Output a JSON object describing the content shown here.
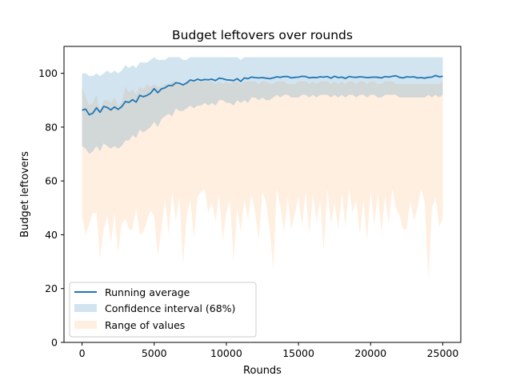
{
  "chart_data": {
    "type": "line",
    "title": "Budget leftovers over rounds",
    "xlabel": "Rounds",
    "ylabel": "Budget leftovers",
    "xlim": [
      -1250,
      26250
    ],
    "ylim": [
      0,
      110
    ],
    "xticks": [
      0,
      5000,
      10000,
      15000,
      20000,
      25000
    ],
    "yticks": [
      0,
      20,
      40,
      60,
      80,
      100
    ],
    "grid": false,
    "legend_position": "lower-left",
    "colors": {
      "line": "#1f77b4",
      "ci_fill": "#1f77b4",
      "range_fill": "#ffe4cc"
    },
    "legend": [
      {
        "label": "Running average",
        "kind": "line"
      },
      {
        "label": "Confidence interval (68%)",
        "kind": "ci"
      },
      {
        "label": "Range of values",
        "kind": "range"
      }
    ],
    "x": [
      0,
      250,
      500,
      750,
      1000,
      1250,
      1500,
      1750,
      2000,
      2250,
      2500,
      2750,
      3000,
      3250,
      3500,
      3750,
      4000,
      4250,
      4500,
      4750,
      5000,
      5250,
      5500,
      5750,
      6000,
      6250,
      6500,
      6750,
      7000,
      7250,
      7500,
      7750,
      8000,
      8250,
      8500,
      8750,
      9000,
      9250,
      9500,
      9750,
      10000,
      10250,
      10500,
      10750,
      11000,
      11250,
      11500,
      11750,
      12000,
      12250,
      12500,
      12750,
      13000,
      13250,
      13500,
      13750,
      14000,
      14250,
      14500,
      14750,
      15000,
      15250,
      15500,
      15750,
      16000,
      16250,
      16500,
      16750,
      17000,
      17250,
      17500,
      17750,
      18000,
      18250,
      18500,
      18750,
      19000,
      19250,
      19500,
      19750,
      20000,
      20250,
      20500,
      20750,
      21000,
      21250,
      21500,
      21750,
      22000,
      22250,
      22500,
      22750,
      23000,
      23250,
      23500,
      23750,
      24000,
      24250,
      24500,
      24750,
      25000
    ],
    "series": [
      {
        "name": "Running average",
        "values": [
          86.3,
          86.7,
          84.6,
          85.2,
          87.2,
          85.5,
          87.7,
          87.3,
          86.4,
          87.5,
          86.6,
          87.6,
          89.5,
          89.2,
          90.2,
          89.3,
          91.8,
          91.3,
          91.8,
          92.6,
          94.3,
          92.8,
          94.2,
          94.6,
          95.5,
          95.4,
          96.5,
          96.3,
          95.7,
          96.4,
          97.5,
          97.2,
          97.8,
          97.4,
          97.7,
          97.6,
          97.8,
          97.3,
          98.2,
          98.0,
          97.6,
          97.5,
          97.3,
          98.0,
          97.0,
          98.3,
          98.0,
          98.6,
          98.4,
          98.3,
          98.4,
          98.2,
          98.0,
          98.3,
          98.7,
          98.5,
          98.8,
          98.8,
          98.3,
          98.5,
          98.6,
          98.9,
          98.8,
          98.3,
          98.5,
          98.4,
          98.7,
          98.6,
          98.8,
          98.2,
          98.9,
          98.4,
          98.6,
          98.1,
          98.8,
          98.6,
          98.5,
          98.7,
          98.6,
          98.4,
          98.5,
          98.6,
          98.5,
          98.3,
          98.8,
          98.6,
          98.9,
          99.1,
          98.5,
          98.3,
          98.7,
          98.6,
          98.7,
          98.3,
          98.4,
          98.2,
          98.5,
          98.6,
          99.2,
          98.7,
          98.9
        ]
      }
    ],
    "ci_lower": [
      73,
      72,
      70,
      71,
      73,
      71,
      74,
      73,
      72,
      73,
      72,
      73,
      75,
      75,
      77,
      76,
      79,
      78,
      79,
      80,
      82,
      80,
      83,
      84,
      85,
      84,
      87,
      86,
      86,
      87,
      88,
      87,
      88,
      88,
      89,
      88,
      89,
      88,
      90,
      90,
      89,
      89,
      88,
      90,
      89,
      90,
      89,
      91,
      91,
      90,
      91,
      90,
      90,
      91,
      92,
      91,
      92,
      92,
      91,
      91,
      91,
      92,
      92,
      91,
      92,
      91,
      92,
      92,
      92,
      91,
      92,
      91,
      92,
      91,
      92,
      92,
      91,
      92,
      92,
      91,
      92,
      92,
      91,
      91,
      92,
      92,
      92,
      92,
      91,
      91,
      91,
      91,
      91,
      91,
      91,
      91,
      92,
      91,
      92,
      91,
      92
    ],
    "ci_upper": [
      100,
      100,
      99,
      99,
      100,
      99,
      100,
      101,
      100,
      101,
      100,
      101,
      103,
      102,
      103,
      102,
      104,
      104,
      104,
      105,
      106,
      105,
      105,
      105,
      106,
      106,
      106,
      106,
      105,
      105,
      106,
      106,
      106,
      106,
      106,
      106,
      106,
      106,
      106,
      106,
      106,
      106,
      106,
      106,
      105,
      106,
      106,
      106,
      106,
      106,
      106,
      106,
      106,
      106,
      106,
      106,
      106,
      106,
      106,
      106,
      106,
      106,
      106,
      106,
      106,
      106,
      106,
      106,
      106,
      106,
      106,
      106,
      106,
      106,
      106,
      106,
      106,
      106,
      106,
      106,
      106,
      106,
      106,
      106,
      106,
      106,
      106,
      106,
      106,
      106,
      106,
      106,
      106,
      106,
      106,
      106,
      106,
      106,
      106,
      106,
      106
    ],
    "range_lower": [
      47,
      40,
      44,
      48,
      48,
      31,
      42,
      47,
      37,
      48,
      33,
      44,
      46,
      42,
      42,
      50,
      40,
      41,
      45,
      49,
      47,
      32,
      42,
      53,
      40,
      56,
      45,
      54,
      29,
      47,
      53,
      39,
      54,
      56,
      57,
      48,
      52,
      45,
      55,
      38,
      48,
      53,
      30,
      50,
      41,
      53,
      46,
      55,
      48,
      38,
      56,
      52,
      42,
      27,
      57,
      50,
      41,
      54,
      42,
      48,
      54,
      43,
      56,
      40,
      55,
      45,
      53,
      34,
      57,
      44,
      52,
      42,
      55,
      43,
      57,
      48,
      53,
      40,
      53,
      38,
      56,
      44,
      55,
      41,
      54,
      44,
      57,
      50,
      47,
      42,
      42,
      53,
      45,
      50,
      57,
      52,
      23,
      50,
      54,
      43,
      46
    ],
    "range_upper": [
      95,
      91,
      88,
      89,
      92,
      86,
      90,
      90,
      89,
      91,
      88,
      89,
      95,
      93,
      94,
      92,
      95,
      94,
      96,
      95,
      96,
      95,
      95,
      96,
      96,
      97,
      97,
      96,
      96,
      97,
      97,
      97,
      97,
      97,
      97,
      97,
      97,
      96,
      97,
      96,
      97,
      96,
      97,
      97,
      96,
      97,
      97,
      97,
      97,
      96,
      97,
      97,
      96,
      96,
      97,
      97,
      97,
      96,
      96,
      96,
      97,
      97,
      97,
      96,
      97,
      96,
      97,
      97,
      97,
      96,
      97,
      96,
      97,
      96,
      97,
      97,
      96,
      97,
      97,
      96,
      97,
      97,
      96,
      96,
      97,
      97,
      97,
      96,
      96,
      96,
      96,
      96,
      96,
      96,
      96,
      96,
      96,
      96,
      96,
      96,
      97
    ]
  }
}
